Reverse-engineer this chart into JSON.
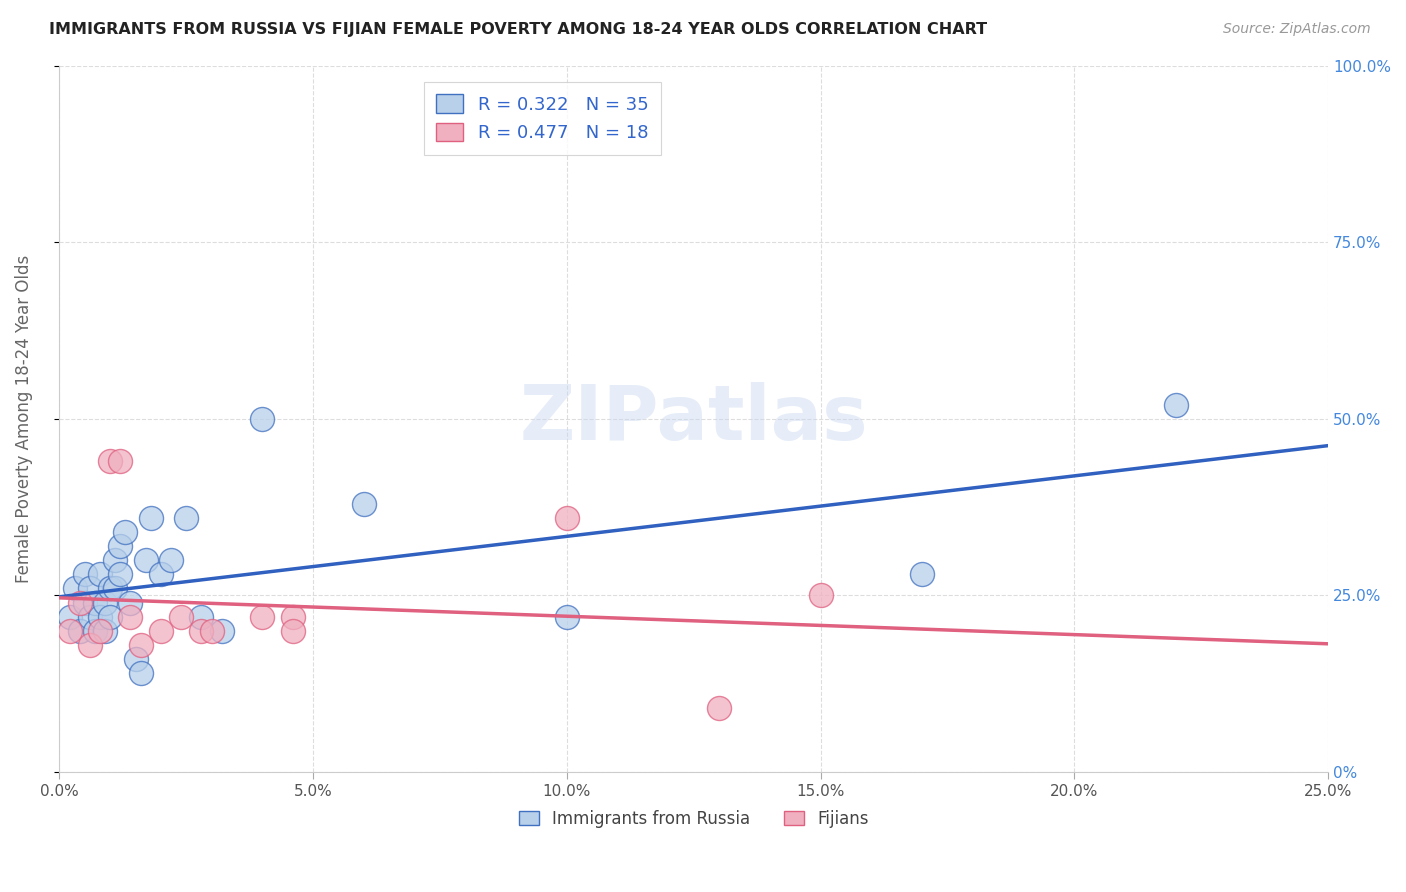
{
  "title": "IMMIGRANTS FROM RUSSIA VS FIJIAN FEMALE POVERTY AMONG 18-24 YEAR OLDS CORRELATION CHART",
  "source": "Source: ZipAtlas.com",
  "ylabel": "Female Poverty Among 18-24 Year Olds",
  "xlim": [
    0,
    0.25
  ],
  "ylim": [
    0,
    1.0
  ],
  "xticks": [
    0,
    0.05,
    0.1,
    0.15,
    0.2,
    0.25
  ],
  "yticks": [
    0,
    0.25,
    0.5,
    0.75,
    1.0
  ],
  "right_ytick_labels": [
    "0%",
    "25.0%",
    "50.0%",
    "75.0%",
    "100.0%"
  ],
  "xtick_labels": [
    "0.0%",
    "5.0%",
    "10.0%",
    "15.0%",
    "20.0%",
    "25.0%"
  ],
  "legend_r1": "R = 0.322",
  "legend_n1": "N = 35",
  "legend_r2": "R = 0.477",
  "legend_n2": "N = 18",
  "blue_fill": "#b8d0ea",
  "pink_fill": "#f0b0c0",
  "blue_edge": "#4070c0",
  "pink_edge": "#e06080",
  "blue_line_color": "#3060c0",
  "pink_line_color": "#e06080",
  "gray_dash_color": "#cccccc",
  "watermark": "ZIPatlas",
  "blue_scatter_x": [
    0.002,
    0.003,
    0.004,
    0.005,
    0.005,
    0.006,
    0.006,
    0.007,
    0.007,
    0.008,
    0.008,
    0.009,
    0.009,
    0.01,
    0.01,
    0.011,
    0.011,
    0.012,
    0.012,
    0.013,
    0.014,
    0.015,
    0.016,
    0.017,
    0.018,
    0.02,
    0.022,
    0.025,
    0.028,
    0.032,
    0.04,
    0.06,
    0.1,
    0.17,
    0.22
  ],
  "blue_scatter_y": [
    0.22,
    0.26,
    0.2,
    0.24,
    0.28,
    0.22,
    0.26,
    0.2,
    0.24,
    0.22,
    0.28,
    0.24,
    0.2,
    0.26,
    0.22,
    0.3,
    0.26,
    0.28,
    0.32,
    0.34,
    0.24,
    0.16,
    0.14,
    0.3,
    0.36,
    0.28,
    0.3,
    0.36,
    0.22,
    0.2,
    0.5,
    0.38,
    0.22,
    0.28,
    0.52
  ],
  "pink_scatter_x": [
    0.002,
    0.004,
    0.006,
    0.008,
    0.01,
    0.012,
    0.014,
    0.016,
    0.02,
    0.024,
    0.028,
    0.03,
    0.04,
    0.046,
    0.046,
    0.1,
    0.13,
    0.15
  ],
  "pink_scatter_y": [
    0.2,
    0.24,
    0.18,
    0.2,
    0.44,
    0.44,
    0.22,
    0.18,
    0.2,
    0.22,
    0.2,
    0.2,
    0.22,
    0.22,
    0.2,
    0.36,
    0.09,
    0.25
  ],
  "blue_R": 0.322,
  "pink_R": 0.477
}
